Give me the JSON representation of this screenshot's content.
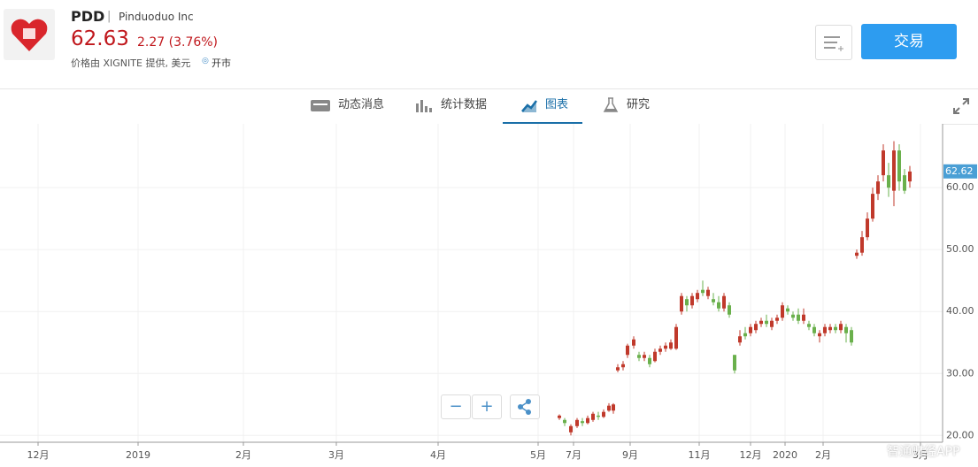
{
  "header": {
    "ticker": "PDD",
    "separator": "|",
    "company": "Pinduoduo Inc",
    "price": "62.63",
    "change": "2.27 (3.76%)",
    "source": "价格由 XIGNITE 提供, 美元",
    "market_status": "开市",
    "trade_button": "交易"
  },
  "tabs": [
    "动态消息",
    "统计数据",
    "图表",
    "研究"
  ],
  "controls": {
    "zoom_out": "−",
    "zoom_in": "+"
  },
  "watermark": "智通财经APP",
  "chart_data": {
    "type": "candlestick",
    "x": [
      632,
      638,
      645,
      652,
      658,
      664,
      670,
      676,
      682,
      688,
      693,
      698,
      704,
      709,
      716,
      722,
      728,
      734,
      740,
      746,
      752,
      758,
      764,
      770,
      776,
      782,
      788,
      794,
      800,
      806,
      812,
      818,
      824,
      830,
      836,
      842,
      848,
      854,
      860,
      866,
      872,
      878,
      884,
      890,
      896,
      902,
      908,
      914,
      920,
      926,
      932,
      938,
      944,
      950,
      956,
      962,
      968,
      974,
      980,
      986,
      992,
      998,
      1004,
      1010,
      1016,
      1022,
      1028
    ],
    "open": [
      22.8,
      22.5,
      20.5,
      21.5,
      22.3,
      22,
      22.5,
      23.2,
      23,
      24,
      24,
      30.5,
      31,
      33,
      34.5,
      33,
      32.5,
      32.5,
      32,
      33.5,
      34,
      34,
      34,
      40,
      42,
      41,
      42,
      43.5,
      42.5,
      42,
      41.5,
      40.5,
      41,
      33,
      35,
      36.5,
      36.5,
      37,
      38,
      38.5,
      37.5,
      38.5,
      39,
      40.5,
      39.5,
      39.5,
      38.5,
      38,
      37.5,
      36,
      36.5,
      37,
      37.5,
      37,
      37.5,
      37,
      49,
      49.5,
      52,
      55,
      59,
      62,
      62,
      59.5,
      66,
      62,
      61
    ],
    "high": [
      23.4,
      22.8,
      21.8,
      22.8,
      22.8,
      23.2,
      23.8,
      23.8,
      24.2,
      25.2,
      25.2,
      31.5,
      32,
      34.8,
      36,
      33.5,
      33.5,
      33,
      34,
      34.5,
      35,
      35.5,
      38,
      43,
      42.5,
      43,
      43.5,
      45,
      44,
      43,
      42.5,
      43,
      41.5,
      33,
      37,
      37.5,
      38,
      38.5,
      39,
      39.5,
      39,
      39.5,
      41.5,
      41,
      40,
      40.5,
      40.5,
      38.5,
      38,
      37,
      38,
      38,
      38,
      38.5,
      38,
      37.5,
      50,
      53,
      56,
      60,
      62,
      67,
      64,
      67.5,
      67,
      63,
      63.5
    ],
    "low": [
      22.5,
      21.5,
      20,
      21.2,
      21.5,
      21.8,
      22.2,
      22.5,
      22.8,
      23.8,
      23.5,
      30.2,
      30.5,
      32.5,
      34,
      32,
      32,
      31,
      31.8,
      33,
      33.5,
      33.8,
      33.8,
      39.5,
      40,
      40.5,
      41.5,
      42.5,
      42,
      41,
      40,
      40,
      39,
      30,
      34.5,
      35.5,
      36,
      36.5,
      37.5,
      37.5,
      37,
      38,
      38.5,
      39.5,
      38.5,
      38,
      38,
      37,
      36,
      35,
      36,
      36.5,
      36.5,
      36.5,
      35,
      34.5,
      48.5,
      49,
      51.5,
      54.5,
      58,
      61,
      58.5,
      57,
      59.5,
      59,
      60
    ],
    "close": [
      23.2,
      22,
      21.5,
      22.5,
      22,
      22.8,
      23.5,
      23,
      23.8,
      24.8,
      25,
      31,
      31.5,
      34.5,
      35.5,
      32.5,
      33,
      31.5,
      33.5,
      34,
      34.5,
      35,
      37.5,
      42.5,
      41,
      42.5,
      43,
      43,
      43.5,
      41.5,
      40.5,
      42.5,
      39.5,
      30.5,
      36,
      36,
      37.5,
      38,
      38.5,
      38,
      38.5,
      39,
      41,
      40,
      39,
      38.5,
      39.5,
      37.5,
      36.5,
      36.5,
      37.5,
      37.5,
      37,
      38,
      36.5,
      35,
      49.5,
      52,
      55,
      59,
      61,
      66,
      60,
      66,
      61,
      59.5,
      62.6
    ],
    "xlim": [
      0,
      1065
    ],
    "xticks": [
      {
        "value": 43,
        "label": "12月"
      },
      {
        "value": 156,
        "label": "2019"
      },
      {
        "value": 275,
        "label": "2月"
      },
      {
        "value": 380,
        "label": "3月"
      },
      {
        "value": 495,
        "label": "4月"
      },
      {
        "value": 608,
        "label": "5月"
      },
      {
        "value": 648,
        "label": "7月"
      },
      {
        "value": 712,
        "label": "9月"
      },
      {
        "value": 790,
        "label": "11月"
      },
      {
        "value": 848,
        "label": "12月"
      },
      {
        "value": 887,
        "label": "2020"
      },
      {
        "value": 930,
        "label": "2月"
      },
      {
        "value": 1040,
        "label": "3月"
      }
    ],
    "ylim": [
      18.9,
      70.3
    ],
    "yticks": [
      {
        "value": 20,
        "label": "20.00"
      },
      {
        "value": 30,
        "label": "30.00"
      },
      {
        "value": 40,
        "label": "40.00"
      },
      {
        "value": 50,
        "label": "50.00"
      },
      {
        "value": 60,
        "label": "60.00"
      }
    ],
    "grid": true,
    "up_color": "#c0392b",
    "down_color": "#6ab04c",
    "last_price": 62.62
  }
}
